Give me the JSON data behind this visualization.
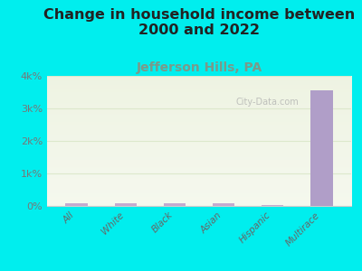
{
  "title": "Change in household income between\n2000 and 2022",
  "subtitle": "Jefferson Hills, PA",
  "categories": [
    "All",
    "White",
    "Black",
    "Asian",
    "Hispanic",
    "Multirace"
  ],
  "values": [
    80,
    80,
    80,
    80,
    40,
    3550
  ],
  "bar_colors": [
    "#c4aad0",
    "#c4aad0",
    "#c4aad0",
    "#c4aad0",
    "#c4aad0",
    "#b09ec8"
  ],
  "background_color": "#00EEEE",
  "plot_bg_top": "#eef3e2",
  "plot_bg_bottom": "#f5f8ee",
  "ylim": [
    0,
    4000
  ],
  "yticks": [
    0,
    1000,
    2000,
    3000,
    4000
  ],
  "ytick_labels": [
    "0%",
    "1k%",
    "2k%",
    "3k%",
    "4k%"
  ],
  "title_fontsize": 11.5,
  "subtitle_fontsize": 10,
  "subtitle_color": "#7a9a8a",
  "watermark": "City-Data.com",
  "bar_width": 0.45,
  "grid_color": "#dde8cc"
}
